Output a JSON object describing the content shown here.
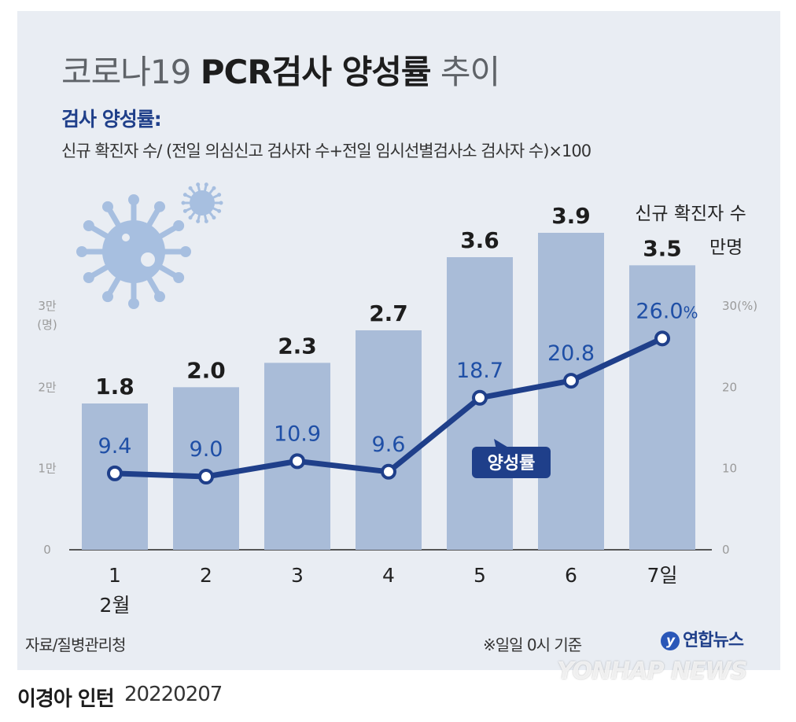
{
  "header": {
    "title_prefix": "코로나19",
    "title_bold": "PCR검사 양성률",
    "title_suffix": "추이",
    "definition_label": "검사 양성률:",
    "formula": "신규 확진자 수/ (전일 의심신고 검사자 수+전일 임시선별검사소 검사자 수)×100"
  },
  "chart_data": {
    "type": "bar",
    "categories": [
      "1",
      "2",
      "3",
      "4",
      "5",
      "6",
      "7일"
    ],
    "month_label": "2월",
    "bar_series": {
      "values": [
        1.8,
        2.0,
        2.3,
        2.7,
        3.6,
        3.9,
        3.5
      ],
      "labels": [
        "1.8",
        "2.0",
        "2.3",
        "2.7",
        "3.6",
        "3.9",
        "3.5"
      ],
      "unit_max": 3.0,
      "color": "#a9bcd8"
    },
    "line_series": {
      "name": "양성률",
      "values": [
        9.4,
        9.0,
        10.9,
        9.6,
        18.7,
        20.8,
        26.0
      ],
      "labels": [
        "9.4",
        "9.0",
        "10.9",
        "9.6",
        "18.7",
        "20.8",
        "26.0"
      ],
      "last_unit": "%",
      "color": "#1f3f8a"
    },
    "left_axis": {
      "ticks": [
        "0",
        "1만",
        "2만",
        "3만"
      ],
      "unit": "(명)",
      "ylim": [
        0,
        3
      ]
    },
    "right_axis": {
      "ticks": [
        "0",
        "10",
        "20",
        "30(%)"
      ],
      "ylim": [
        0,
        30
      ]
    },
    "annotation": {
      "line1": "신규 확진자 수",
      "unit": "만명"
    }
  },
  "footer": {
    "source": "자료/질병관리청",
    "note": "※일일 0시 기준",
    "brand": "연합뉴스",
    "author": "이경아 인턴",
    "date": "20220207",
    "watermark": "YONHAP NEWS"
  }
}
